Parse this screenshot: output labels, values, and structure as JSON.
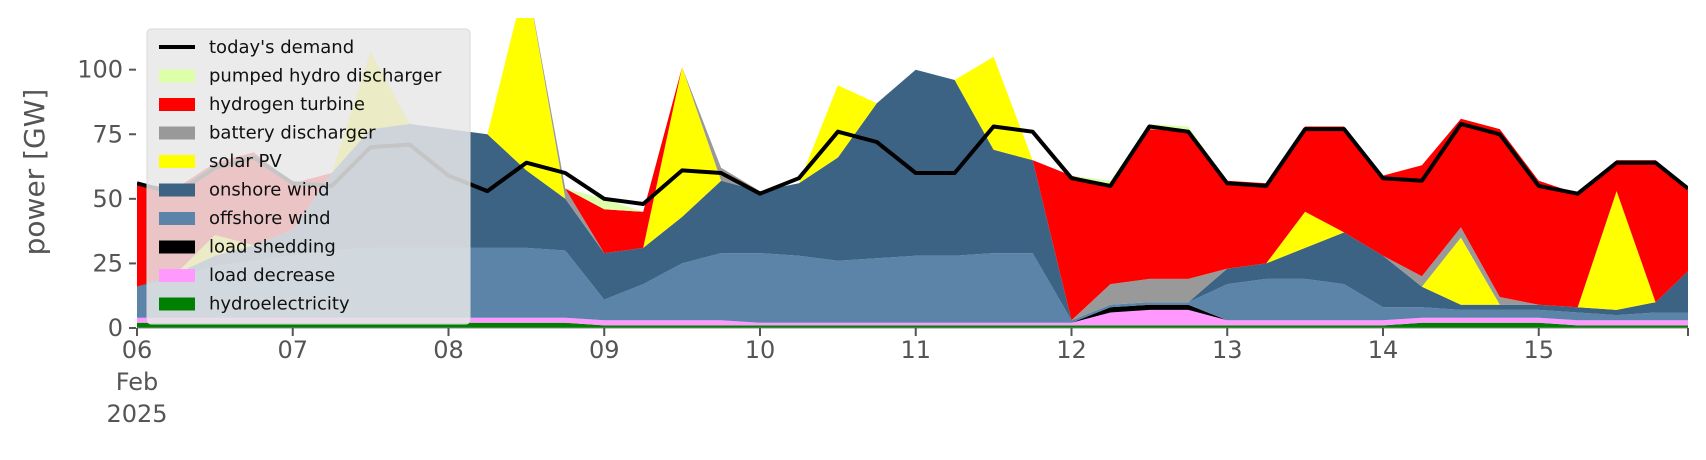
{
  "chart_data": {
    "type": "area",
    "title": "",
    "ylabel": "power [GW]",
    "xlabel": "",
    "ylim": [
      0,
      120
    ],
    "xlim": [
      "2025-02-06 00:00",
      "2025-02-15 23:00"
    ],
    "yticks": [
      0,
      25,
      50,
      75,
      100
    ],
    "xticks": [
      {
        "date": "2025-02-06",
        "label": "06",
        "sub": [
          "Feb",
          "2025"
        ]
      },
      {
        "date": "2025-02-07",
        "label": "07",
        "sub": []
      },
      {
        "date": "2025-02-08",
        "label": "08",
        "sub": []
      },
      {
        "date": "2025-02-09",
        "label": "09",
        "sub": []
      },
      {
        "date": "2025-02-10",
        "label": "10",
        "sub": []
      },
      {
        "date": "2025-02-11",
        "label": "11",
        "sub": []
      },
      {
        "date": "2025-02-12",
        "label": "12",
        "sub": []
      },
      {
        "date": "2025-02-13",
        "label": "13",
        "sub": []
      },
      {
        "date": "2025-02-14",
        "label": "14",
        "sub": []
      },
      {
        "date": "2025-02-15",
        "label": "15",
        "sub": []
      }
    ],
    "grid": false,
    "legend_position": "upper-left",
    "x": [
      "2025-02-06 00:00",
      "2025-02-06 06:00",
      "2025-02-06 12:00",
      "2025-02-06 18:00",
      "2025-02-07 00:00",
      "2025-02-07 06:00",
      "2025-02-07 12:00",
      "2025-02-07 18:00",
      "2025-02-08 00:00",
      "2025-02-08 06:00",
      "2025-02-08 12:00",
      "2025-02-08 18:00",
      "2025-02-09 00:00",
      "2025-02-09 06:00",
      "2025-02-09 12:00",
      "2025-02-09 18:00",
      "2025-02-10 00:00",
      "2025-02-10 06:00",
      "2025-02-10 12:00",
      "2025-02-10 18:00",
      "2025-02-11 00:00",
      "2025-02-11 06:00",
      "2025-02-11 12:00",
      "2025-02-11 18:00",
      "2025-02-12 00:00",
      "2025-02-12 06:00",
      "2025-02-12 12:00",
      "2025-02-12 18:00",
      "2025-02-13 00:00",
      "2025-02-13 06:00",
      "2025-02-13 12:00",
      "2025-02-13 18:00",
      "2025-02-14 00:00",
      "2025-02-14 06:00",
      "2025-02-14 12:00",
      "2025-02-14 18:00",
      "2025-02-15 00:00",
      "2025-02-15 06:00",
      "2025-02-15 12:00",
      "2025-02-15 18:00",
      "2025-02-15 23:00"
    ],
    "demand": {
      "name": "today's demand",
      "color": "#000000",
      "values": [
        56,
        52,
        62,
        66,
        56,
        55,
        70,
        71,
        59,
        53,
        64,
        60,
        50,
        48,
        61,
        60,
        52,
        58,
        76,
        72,
        60,
        60,
        78,
        76,
        58,
        55,
        78,
        76,
        56,
        55,
        77,
        77,
        58,
        57,
        79,
        75,
        55,
        52,
        64,
        64,
        54
      ]
    },
    "series": [
      {
        "name": "hydroelectricity",
        "color": "#008000",
        "values": [
          2,
          2,
          2,
          2,
          2,
          2,
          2,
          2,
          2,
          2,
          2,
          2,
          1,
          1,
          1,
          1,
          1,
          1,
          1,
          1,
          1,
          1,
          1,
          1,
          1,
          1,
          1,
          1,
          1,
          1,
          1,
          1,
          1,
          2,
          2,
          2,
          2,
          1,
          1,
          1,
          1
        ]
      },
      {
        "name": "load decrease",
        "color": "#ff99ff",
        "values": [
          2,
          2,
          2,
          2,
          2,
          2,
          2,
          2,
          2,
          2,
          2,
          2,
          2,
          2,
          2,
          2,
          1,
          1,
          1,
          1,
          1,
          1,
          1,
          1,
          1,
          5,
          6,
          6,
          2,
          2,
          2,
          2,
          2,
          2,
          2,
          2,
          2,
          2,
          2,
          2,
          2
        ]
      },
      {
        "name": "load shedding",
        "color": "#000000",
        "values": [
          0,
          0,
          0,
          0,
          0,
          0,
          0,
          0,
          0,
          0,
          0,
          0,
          0,
          0,
          0,
          0,
          0,
          0,
          0,
          0,
          0,
          0,
          0,
          0,
          0,
          2,
          2,
          2,
          0,
          0,
          0,
          0,
          0,
          0,
          0,
          0,
          0,
          0,
          0,
          0,
          0
        ]
      },
      {
        "name": "offshore wind",
        "color": "#5b84a8",
        "values": [
          12,
          15,
          20,
          22,
          24,
          26,
          27,
          27,
          27,
          27,
          27,
          26,
          8,
          14,
          22,
          26,
          27,
          26,
          24,
          25,
          26,
          26,
          27,
          27,
          1,
          1,
          1,
          1,
          14,
          16,
          16,
          14,
          5,
          4,
          3,
          3,
          3,
          3,
          2,
          3,
          3
        ]
      },
      {
        "name": "onshore wind",
        "color": "#3c6384",
        "values": [
          0,
          2,
          4,
          6,
          10,
          30,
          46,
          48,
          46,
          44,
          30,
          20,
          18,
          14,
          18,
          28,
          24,
          28,
          40,
          60,
          72,
          68,
          40,
          36,
          0,
          0,
          0,
          0,
          6,
          6,
          12,
          20,
          20,
          8,
          2,
          2,
          2,
          2,
          2,
          4,
          16
        ]
      },
      {
        "name": "solar PV",
        "color": "#ffff00",
        "values": [
          0,
          0,
          8,
          0,
          0,
          0,
          30,
          0,
          0,
          0,
          75,
          0,
          0,
          0,
          58,
          0,
          0,
          0,
          28,
          0,
          0,
          0,
          36,
          0,
          0,
          0,
          0,
          0,
          0,
          0,
          14,
          0,
          0,
          0,
          26,
          0,
          0,
          0,
          46,
          0,
          0
        ]
      },
      {
        "name": "battery discharger",
        "color": "#999999",
        "values": [
          0,
          0,
          0,
          0,
          0,
          0,
          0,
          0,
          0,
          0,
          0,
          4,
          0,
          0,
          0,
          5,
          0,
          0,
          0,
          0,
          0,
          0,
          0,
          0,
          0,
          8,
          9,
          9,
          0,
          0,
          0,
          0,
          0,
          4,
          4,
          3,
          0,
          0,
          0,
          0,
          0
        ]
      },
      {
        "name": "hydrogen turbine",
        "color": "#ff0000",
        "values": [
          40,
          33,
          28,
          36,
          18,
          0,
          0,
          0,
          0,
          0,
          0,
          0,
          17,
          14,
          0,
          0,
          0,
          0,
          0,
          0,
          0,
          0,
          0,
          0,
          56,
          38,
          58,
          57,
          34,
          31,
          33,
          41,
          31,
          43,
          42,
          65,
          48,
          44,
          12,
          55,
          32
        ]
      },
      {
        "name": "pumped hydro discharger",
        "color": "#ddffaa",
        "values": [
          0,
          0,
          0,
          0,
          0,
          0,
          0,
          0,
          0,
          0,
          0,
          0,
          4,
          0,
          0,
          0,
          0,
          0,
          0,
          0,
          0,
          0,
          0,
          0,
          0,
          2,
          2,
          2,
          0,
          0,
          0,
          0,
          0,
          0,
          0,
          0,
          0,
          0,
          0,
          0,
          0
        ]
      }
    ],
    "legend_order": [
      "today's demand",
      "pumped hydro discharger",
      "hydrogen turbine",
      "battery discharger",
      "solar PV",
      "onshore wind",
      "offshore wind",
      "load shedding",
      "load decrease",
      "hydroelectricity"
    ]
  }
}
